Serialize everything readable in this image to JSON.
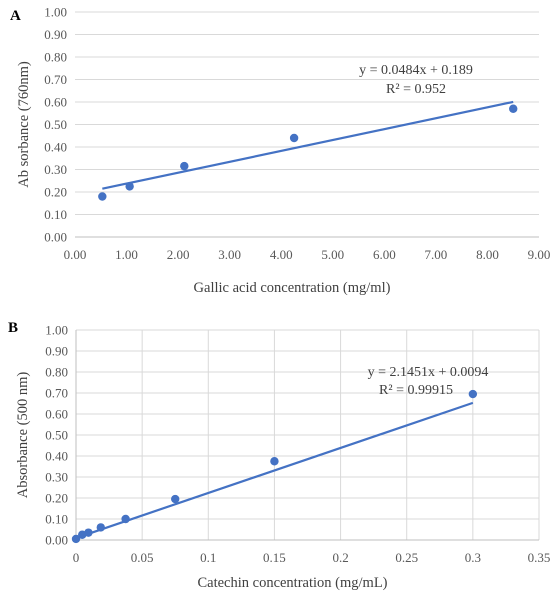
{
  "chart_data": [
    {
      "type": "scatter",
      "panel_label": "A",
      "xlabel": "Gallic acid concentration (mg/ml)",
      "ylabel": "Ab sorbance (760nm)",
      "xlim": [
        0,
        9
      ],
      "ylim": [
        0,
        1
      ],
      "x_ticks": [
        "0.00",
        "1.00",
        "2.00",
        "3.00",
        "4.00",
        "5.00",
        "6.00",
        "7.00",
        "8.00",
        "9.00"
      ],
      "y_ticks": [
        "0.00",
        "0.10",
        "0.20",
        "0.30",
        "0.40",
        "0.50",
        "0.60",
        "0.70",
        "0.80",
        "0.90",
        "1.00"
      ],
      "grid": "horizontal",
      "points": {
        "x": [
          0.53,
          1.06,
          2.12,
          4.25,
          8.5
        ],
        "y": [
          0.18,
          0.225,
          0.315,
          0.44,
          0.57
        ]
      },
      "trendline": {
        "slope": 0.0484,
        "intercept": 0.189,
        "x_range": [
          0.53,
          8.5
        ]
      },
      "equation": "y = 0.0484x + 0.189",
      "r_squared": "R² = 0.952",
      "color": "#4472c4"
    },
    {
      "type": "scatter",
      "panel_label": "B",
      "xlabel": "Catechin concentration (mg/mL)",
      "ylabel": "Absorbance (500 nm)",
      "xlim": [
        0,
        0.35
      ],
      "ylim": [
        0,
        1
      ],
      "x_ticks": [
        "0",
        "0.05",
        "0.1",
        "0.15",
        "0.2",
        "0.25",
        "0.3",
        "0.35"
      ],
      "y_ticks": [
        "0.00",
        "0.10",
        "0.20",
        "0.30",
        "0.40",
        "0.50",
        "0.60",
        "0.70",
        "0.80",
        "0.90",
        "1.00"
      ],
      "grid": "both",
      "points": {
        "x": [
          0,
          0.0047,
          0.0094,
          0.01875,
          0.0375,
          0.075,
          0.15,
          0.3
        ],
        "y": [
          0.005,
          0.025,
          0.035,
          0.06,
          0.1,
          0.195,
          0.375,
          0.695
        ]
      },
      "trendline": {
        "slope": 2.1451,
        "intercept": 0.0094,
        "x_range": [
          0,
          0.3
        ]
      },
      "equation": "y = 2.1451x + 0.0094",
      "r_squared": "R² = 0.99915",
      "color": "#4472c4"
    }
  ]
}
